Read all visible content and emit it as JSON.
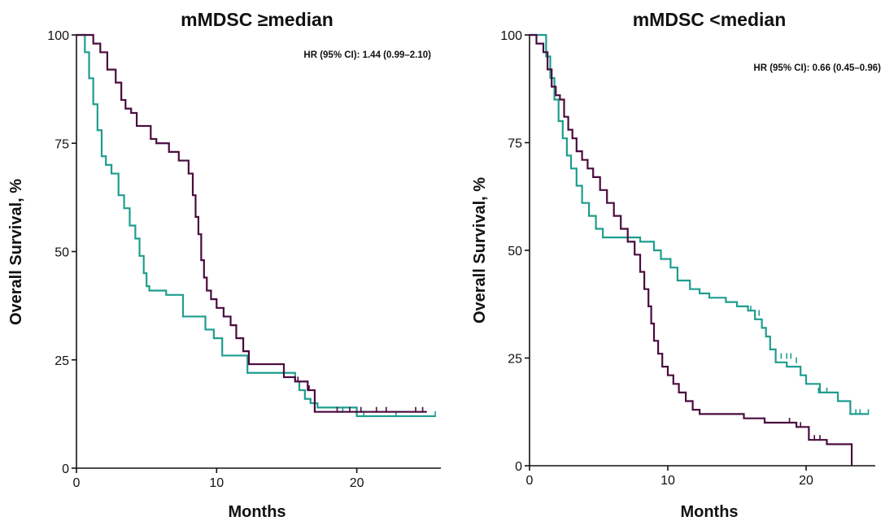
{
  "colors": {
    "purple": "#4a0b3f",
    "teal": "#1e9d8f"
  },
  "chart_data": [
    {
      "type": "line",
      "title": "mMDSC ≥median",
      "annotation": "HR (95% CI): 1.44 (0.99–2.10)",
      "xlabel": "Months",
      "ylabel": "Overall Survival, %",
      "xlim": [
        0,
        26
      ],
      "ylim": [
        0,
        100
      ],
      "xticks": [
        "0",
        "10",
        "20"
      ],
      "yticks": [
        "0",
        "25",
        "50",
        "75",
        "100"
      ],
      "grid": false,
      "series": [
        {
          "color": "#4a0b3f",
          "x": [
            0,
            0.8,
            1.2,
            1.7,
            2.2,
            2.8,
            3.2,
            3.5,
            3.9,
            4.3,
            5.3,
            5.7,
            6.6,
            7.3,
            8.0,
            8.3,
            8.5,
            8.7,
            8.9,
            9.1,
            9.3,
            9.6,
            10.0,
            10.5,
            11.0,
            11.4,
            11.9,
            12.3,
            14.8,
            15.6,
            16.5,
            17.0,
            25.0
          ],
          "y": [
            100,
            100,
            98,
            96,
            92,
            89,
            85,
            83,
            82,
            79,
            76,
            75,
            73,
            71,
            68,
            63,
            58,
            54,
            48,
            44,
            41,
            39,
            37,
            35,
            33,
            30,
            27,
            24,
            21,
            20,
            18,
            13,
            13
          ],
          "censored": [
            [
              15.8,
              20
            ],
            [
              16.6,
              18
            ],
            [
              18.6,
              13
            ],
            [
              19.5,
              13
            ],
            [
              20.3,
              13
            ],
            [
              21.4,
              13
            ],
            [
              22.1,
              13
            ],
            [
              24.2,
              13
            ],
            [
              24.7,
              13
            ]
          ]
        },
        {
          "color": "#1e9d8f",
          "x": [
            0,
            0.6,
            0.9,
            1.2,
            1.5,
            1.8,
            2.1,
            2.5,
            3.0,
            3.4,
            3.8,
            4.2,
            4.5,
            4.8,
            5.0,
            5.2,
            6.4,
            7.6,
            9.2,
            9.8,
            10.4,
            12.2,
            15.6,
            15.9,
            16.3,
            16.7,
            17.2,
            20.0,
            25.6
          ],
          "y": [
            100,
            96,
            90,
            84,
            78,
            72,
            70,
            68,
            63,
            60,
            56,
            53,
            49,
            45,
            42,
            41,
            40,
            35,
            32,
            30,
            26,
            22,
            20,
            18,
            16,
            15,
            14,
            12,
            12
          ],
          "censored": [
            [
              19.0,
              13
            ],
            [
              20.5,
              12
            ],
            [
              22.8,
              12
            ],
            [
              25.6,
              12
            ]
          ]
        }
      ]
    },
    {
      "type": "line",
      "title": "mMDSC <median",
      "annotation": "HR (95% CI): 0.66 (0.45–0.96)",
      "xlabel": "Months",
      "ylabel": "Overall Survival, %",
      "xlim": [
        0,
        25
      ],
      "ylim": [
        0,
        100
      ],
      "xticks": [
        "0",
        "10",
        "20"
      ],
      "yticks": [
        "0",
        "25",
        "50",
        "75",
        "100"
      ],
      "grid": false,
      "series": [
        {
          "color": "#4a0b3f",
          "x": [
            0,
            0.5,
            1.0,
            1.3,
            1.6,
            1.9,
            2.2,
            2.5,
            2.8,
            3.1,
            3.4,
            3.8,
            4.2,
            4.6,
            5.1,
            5.6,
            6.1,
            6.6,
            7.1,
            7.6,
            8.0,
            8.3,
            8.6,
            8.8,
            9.0,
            9.3,
            9.6,
            10.0,
            10.4,
            10.8,
            11.3,
            11.8,
            12.3,
            12.8,
            15.5,
            17.0,
            19.3,
            20.2,
            21.5,
            23.3
          ],
          "y": [
            100,
            98,
            96,
            92,
            88,
            86,
            85,
            81,
            78,
            76,
            73,
            71,
            69,
            67,
            64,
            61,
            58,
            55,
            52,
            49,
            45,
            41,
            37,
            33,
            29,
            26,
            23,
            21,
            19,
            17,
            15,
            13,
            12,
            12,
            11,
            10,
            9,
            6,
            5,
            0
          ],
          "censored": [
            [
              18.8,
              10
            ],
            [
              19.6,
              9
            ],
            [
              20.6,
              6
            ],
            [
              21.0,
              6
            ]
          ]
        },
        {
          "color": "#1e9d8f",
          "x": [
            0,
            1.2,
            1.5,
            1.8,
            2.1,
            2.4,
            2.7,
            3.0,
            3.4,
            3.8,
            4.3,
            4.8,
            5.3,
            7.0,
            8.0,
            9.0,
            9.5,
            10.2,
            10.7,
            11.6,
            12.3,
            13.0,
            14.2,
            15.0,
            15.8,
            16.3,
            16.8,
            17.1,
            17.4,
            17.8,
            18.6,
            19.6,
            20.0,
            21.0,
            22.3,
            23.2,
            24.5
          ],
          "y": [
            100,
            95,
            90,
            85,
            80,
            76,
            72,
            69,
            65,
            61,
            58,
            55,
            53,
            53,
            52,
            50,
            48,
            46,
            43,
            41,
            40,
            39,
            38,
            37,
            36,
            34,
            32,
            30,
            27,
            24,
            23,
            21,
            19,
            17,
            15,
            12,
            12
          ],
          "censored": [
            [
              16.0,
              36
            ],
            [
              16.6,
              35
            ],
            [
              18.2,
              25
            ],
            [
              18.6,
              25
            ],
            [
              18.9,
              25
            ],
            [
              19.3,
              24
            ],
            [
              20.9,
              17
            ],
            [
              21.5,
              17
            ],
            [
              23.6,
              12
            ],
            [
              23.9,
              12
            ],
            [
              24.5,
              12
            ]
          ]
        }
      ]
    }
  ]
}
